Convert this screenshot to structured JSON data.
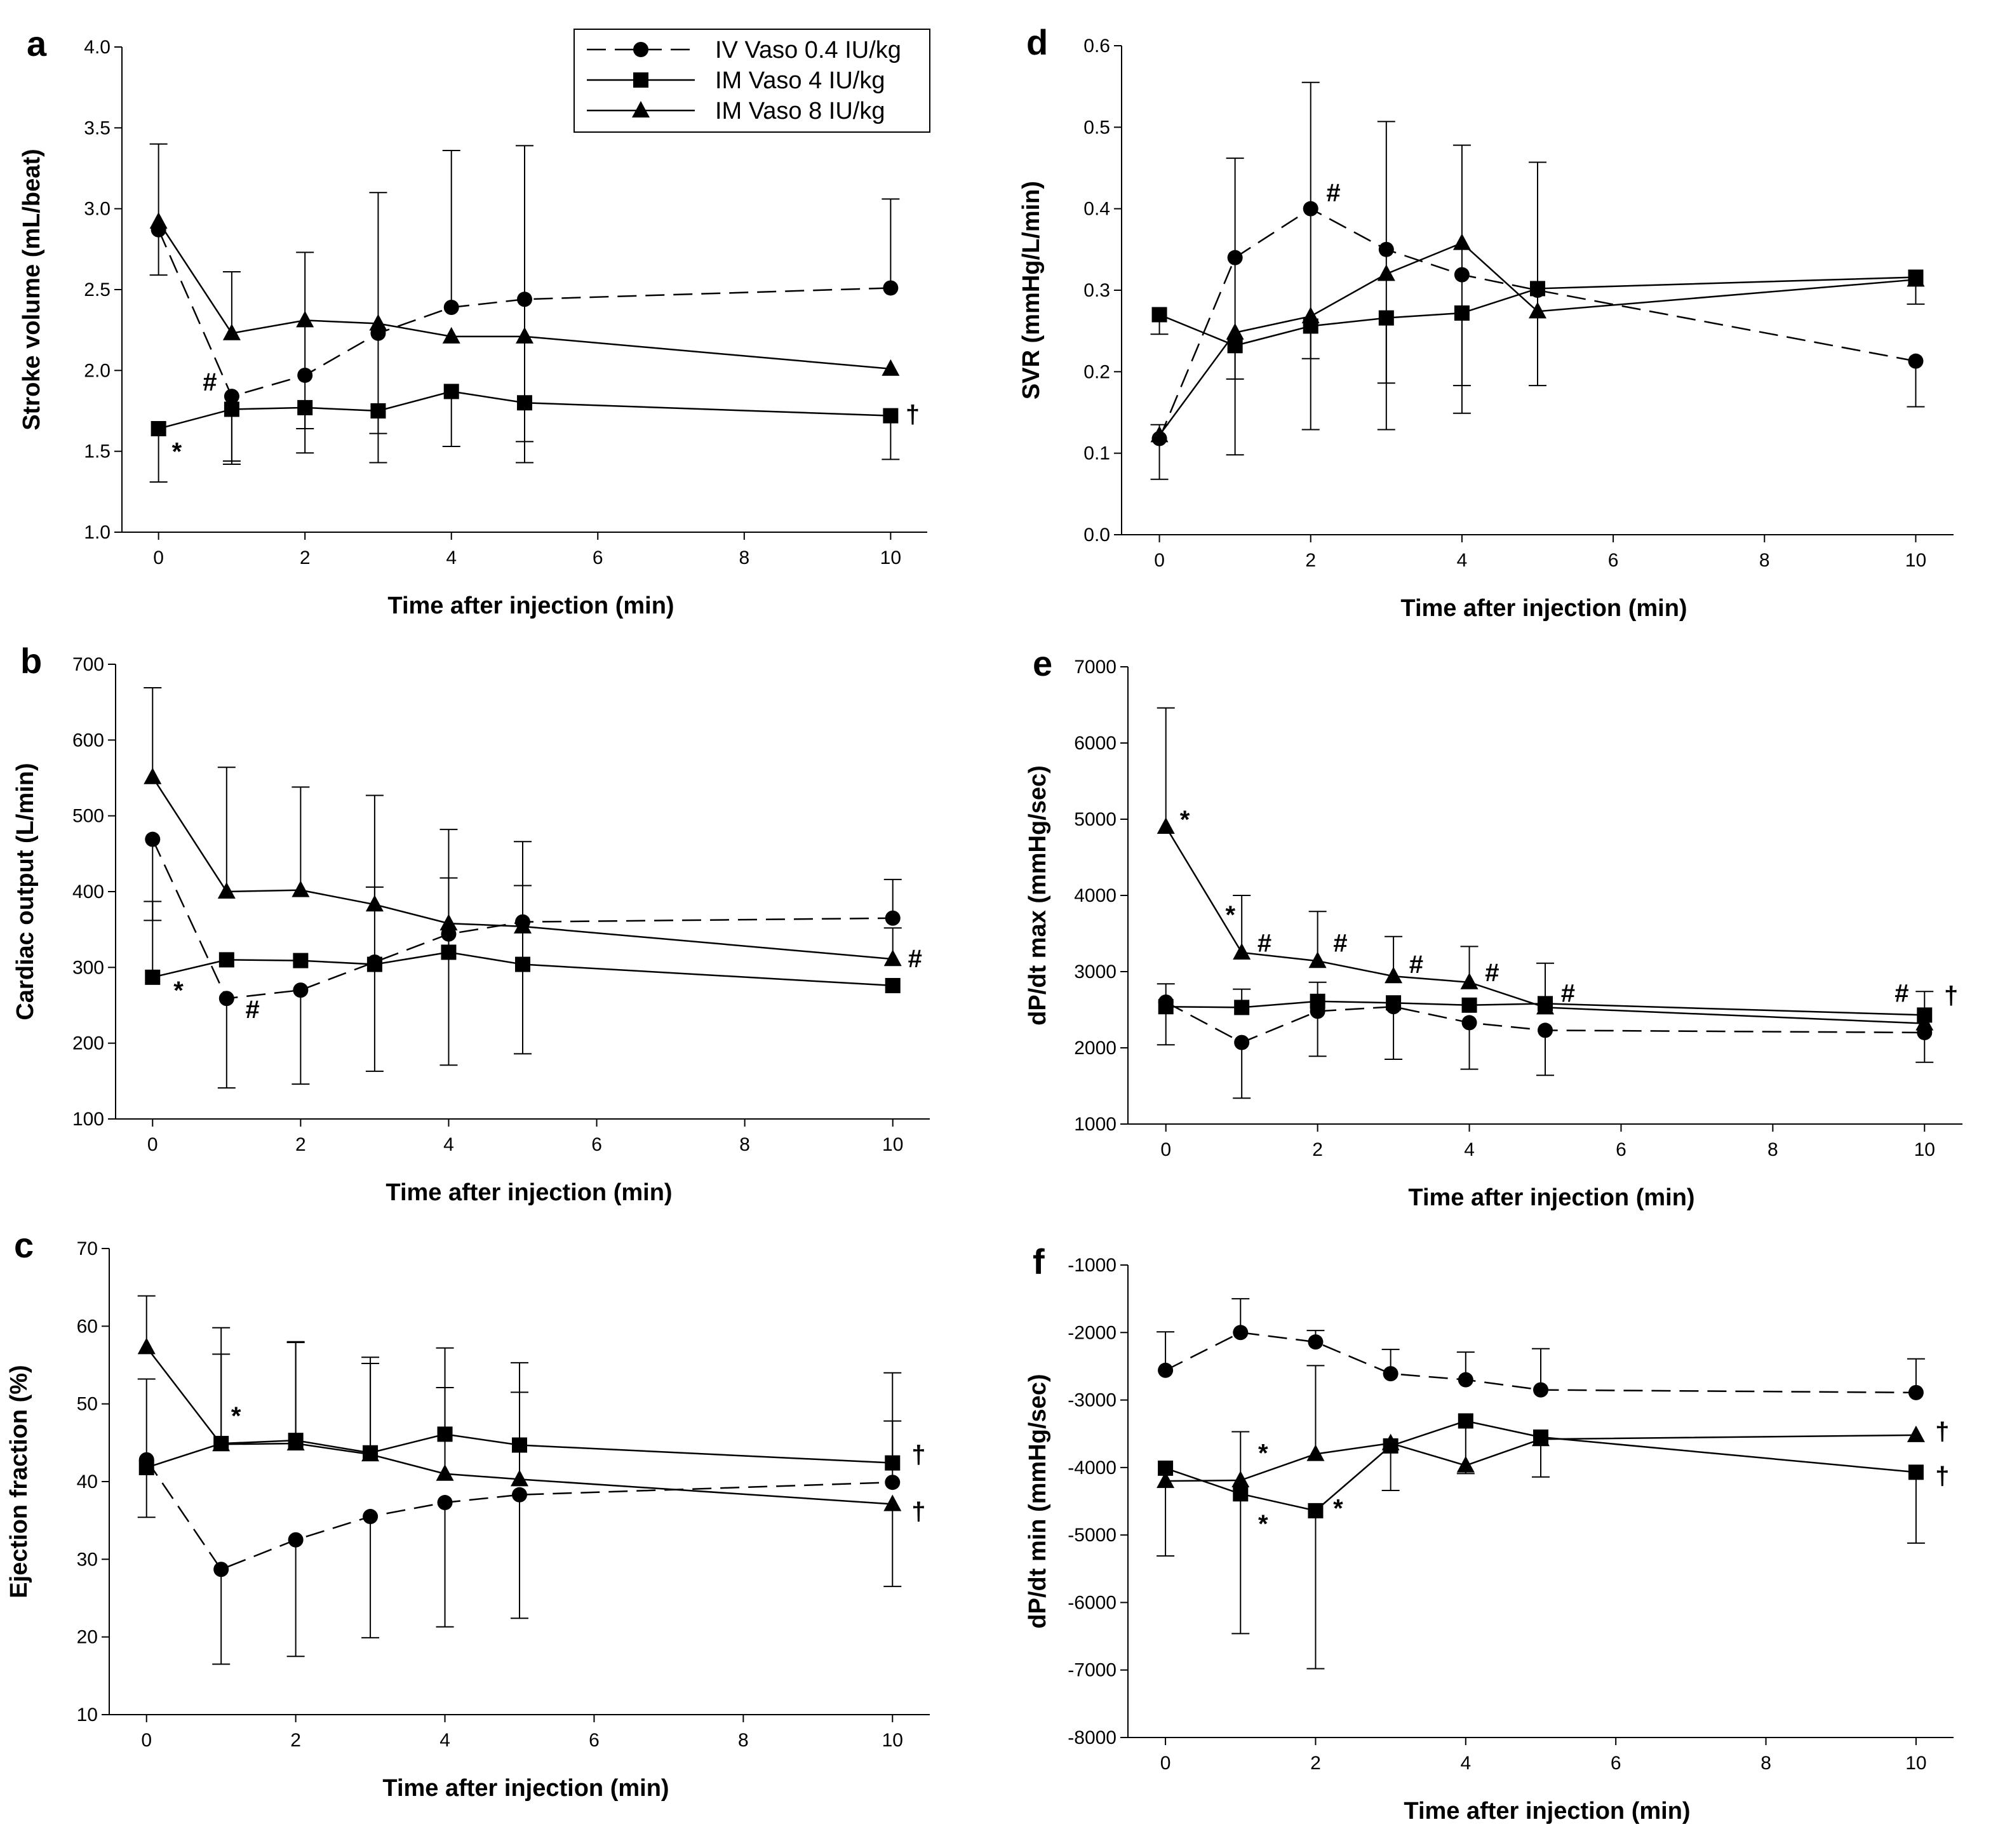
{
  "legend": {
    "entries": [
      {
        "label": "IV Vaso 0.4 IU/kg",
        "marker": "circle",
        "line": "dashed"
      },
      {
        "label": "IM Vaso 4 IU/kg",
        "marker": "square",
        "line": "solid"
      },
      {
        "label": "IM Vaso 8 IU/kg",
        "marker": "triangle",
        "line": "solid"
      }
    ]
  },
  "chart_data": [
    {
      "type": "line",
      "panel": "a",
      "xlabel": "Time after injection (min)",
      "ylabel": "Stroke volume (mL/beat)",
      "x": [
        0,
        1,
        2,
        3,
        4,
        5,
        10
      ],
      "xticks": [
        0,
        2,
        4,
        6,
        8,
        10
      ],
      "xlim": [
        -0.5,
        10.5
      ],
      "ylim": [
        1.0,
        4.0
      ],
      "yticks": [
        1.0,
        1.5,
        2.0,
        2.5,
        3.0,
        3.5,
        4.0
      ],
      "ytick_labels": [
        "1.0",
        "1.5",
        "2.0",
        "2.5",
        "3.0",
        "3.5",
        "4.0"
      ],
      "series": [
        {
          "name": "IV Vaso 0.4 IU/kg",
          "values": [
            2.87,
            1.84,
            1.97,
            2.23,
            2.39,
            2.44,
            2.51
          ],
          "err_up": [
            null,
            null,
            null,
            null,
            3.36,
            3.39,
            3.06
          ],
          "err_down": [
            2.59,
            1.44,
            null,
            null,
            null,
            1.56,
            null
          ]
        },
        {
          "name": "IM Vaso 4 IU/kg",
          "values": [
            1.64,
            1.76,
            1.77,
            1.75,
            1.87,
            1.8,
            1.72
          ],
          "err_up": [
            null,
            null,
            null,
            null,
            null,
            null,
            null
          ],
          "err_down": [
            1.31,
            1.42,
            1.49,
            1.43,
            1.53,
            1.43,
            1.45
          ]
        },
        {
          "name": "IM Vaso 8 IU/kg",
          "values": [
            2.92,
            2.23,
            2.31,
            2.29,
            2.21,
            2.21,
            2.01
          ],
          "err_up": [
            3.4,
            2.61,
            2.73,
            3.1,
            null,
            null,
            null
          ],
          "err_down": [
            null,
            null,
            1.64,
            1.61,
            null,
            null,
            null
          ]
        }
      ],
      "annotations": [
        {
          "text": "#",
          "x": 0.7,
          "y": 1.93
        },
        {
          "text": "*",
          "x": 0.25,
          "y": 1.5
        },
        {
          "text": "†",
          "x": 10.3,
          "y": 1.73
        }
      ]
    },
    {
      "type": "line",
      "panel": "b",
      "xlabel": "Time after injection (min)",
      "ylabel": "Cardiac output (L/min)",
      "x": [
        0,
        1,
        2,
        3,
        4,
        5,
        10
      ],
      "xticks": [
        0,
        2,
        4,
        6,
        8,
        10
      ],
      "xlim": [
        -0.5,
        10.5
      ],
      "ylim": [
        100,
        700
      ],
      "yticks": [
        100,
        200,
        300,
        400,
        500,
        600,
        700
      ],
      "ytick_labels": [
        "100",
        "200",
        "300",
        "400",
        "500",
        "600",
        "700"
      ],
      "series": [
        {
          "name": "IV Vaso 0.4 IU/kg",
          "values": [
            469,
            259,
            270,
            307,
            344,
            360,
            365
          ],
          "err_up": [
            null,
            null,
            null,
            null,
            482,
            466,
            416
          ],
          "err_down": [
            362,
            141,
            146,
            163,
            171,
            null,
            null
          ]
        },
        {
          "name": "IM Vaso 4 IU/kg",
          "values": [
            287,
            310,
            309,
            304,
            320,
            304,
            276
          ],
          "err_up": [
            387,
            null,
            null,
            406,
            418,
            408,
            null
          ],
          "err_down": [
            null,
            null,
            null,
            null,
            null,
            186,
            null
          ]
        },
        {
          "name": "IM Vaso 8 IU/kg",
          "values": [
            551,
            400,
            402,
            383,
            358,
            354,
            311
          ],
          "err_up": [
            669,
            564,
            538,
            527,
            null,
            null,
            352
          ],
          "err_down": [
            null,
            null,
            null,
            null,
            null,
            null,
            null
          ]
        }
      ],
      "annotations": [
        {
          "text": "*",
          "x": 0.35,
          "y": 270
        },
        {
          "text": "#",
          "x": 1.35,
          "y": 245
        },
        {
          "text": "#",
          "x": 10.3,
          "y": 312
        }
      ]
    },
    {
      "type": "line",
      "panel": "c",
      "xlabel": "Time after injection (min)",
      "ylabel": "Ejection fraction (%)",
      "x": [
        0,
        1,
        2,
        3,
        4,
        5,
        10
      ],
      "xticks": [
        0,
        2,
        4,
        6,
        8,
        10
      ],
      "xlim": [
        -0.5,
        10.5
      ],
      "ylim": [
        10,
        70
      ],
      "yticks": [
        10,
        20,
        30,
        40,
        50,
        60,
        70
      ],
      "ytick_labels": [
        "10",
        "20",
        "30",
        "40",
        "50",
        "60",
        "70"
      ],
      "series": [
        {
          "name": "IV Vaso 0.4 IU/kg",
          "values": [
            42.8,
            28.7,
            32.5,
            35.5,
            37.3,
            38.3,
            39.9
          ],
          "err_up": [
            null,
            null,
            null,
            null,
            null,
            null,
            47.8
          ],
          "err_down": [
            35.4,
            16.5,
            17.5,
            19.9,
            21.3,
            22.4,
            null
          ]
        },
        {
          "name": "IM Vaso 4 IU/kg",
          "values": [
            41.8,
            44.9,
            45.3,
            43.7,
            46.1,
            44.7,
            42.4
          ],
          "err_up": [
            53.2,
            56.4,
            58.0,
            55.2,
            57.2,
            55.3,
            54.0
          ],
          "err_down": [
            null,
            null,
            null,
            null,
            null,
            null,
            null
          ]
        },
        {
          "name": "IM Vaso 8 IU/kg",
          "values": [
            57.3,
            44.8,
            44.9,
            43.5,
            41.0,
            40.3,
            37.1
          ],
          "err_up": [
            63.9,
            59.8,
            57.9,
            56.0,
            52.1,
            51.5,
            null
          ],
          "err_down": [
            null,
            null,
            null,
            null,
            null,
            null,
            26.5
          ]
        }
      ],
      "annotations": [
        {
          "text": "*",
          "x": 1.2,
          "y": 48.5
        },
        {
          "text": "†",
          "x": 10.35,
          "y": 43.5
        },
        {
          "text": "†",
          "x": 10.35,
          "y": 36.2
        }
      ]
    },
    {
      "type": "line",
      "panel": "d",
      "xlabel": "Time after injection (min)",
      "ylabel": "SVR (mmHg/L/min)",
      "x": [
        0,
        1,
        2,
        3,
        4,
        5,
        10
      ],
      "xticks": [
        0,
        2,
        4,
        6,
        8,
        10
      ],
      "xlim": [
        -0.5,
        10.5
      ],
      "ylim": [
        0.0,
        0.6
      ],
      "yticks": [
        0.0,
        0.1,
        0.2,
        0.3,
        0.4,
        0.5,
        0.6
      ],
      "ytick_labels": [
        "0.0",
        "0.1",
        "0.2",
        "0.3",
        "0.4",
        "0.5",
        "0.6"
      ],
      "series": [
        {
          "name": "IV Vaso 0.4 IU/kg",
          "values": [
            0.118,
            0.34,
            0.4,
            0.35,
            0.319,
            0.3,
            0.213
          ],
          "err_up": [
            null,
            0.462,
            0.555,
            0.507,
            0.478,
            null,
            null
          ],
          "err_down": [
            0.068,
            0.098,
            0.129,
            0.129,
            0.149,
            null,
            0.157
          ]
        },
        {
          "name": "IM Vaso 4 IU/kg",
          "values": [
            0.27,
            0.232,
            0.256,
            0.266,
            0.272,
            0.302,
            0.316
          ],
          "err_up": [
            null,
            null,
            null,
            null,
            null,
            0.457,
            null
          ],
          "err_down": [
            0.246,
            0.191,
            0.216,
            0.186,
            0.183,
            0.183,
            0.283
          ]
        },
        {
          "name": "IM Vaso 8 IU/kg",
          "values": [
            0.122,
            0.248,
            0.268,
            0.32,
            0.358,
            0.274,
            0.313
          ],
          "err_up": [
            0.135,
            null,
            null,
            null,
            null,
            null,
            null
          ],
          "err_down": [
            null,
            null,
            null,
            null,
            null,
            null,
            null
          ]
        }
      ],
      "annotations": [
        {
          "text": "#",
          "x": 2.3,
          "y": 0.42
        }
      ]
    },
    {
      "type": "line",
      "panel": "e",
      "xlabel": "Time after injection (min)",
      "ylabel": "dP/dt max (mmHg/sec)",
      "x": [
        0,
        1,
        2,
        3,
        4,
        5,
        10
      ],
      "xticks": [
        0,
        2,
        4,
        6,
        8,
        10
      ],
      "xlim": [
        -0.5,
        10.5
      ],
      "ylim": [
        1000,
        7000
      ],
      "yticks": [
        1000,
        2000,
        3000,
        4000,
        5000,
        6000,
        7000
      ],
      "ytick_labels": [
        "1000",
        "2000",
        "3000",
        "4000",
        "5000",
        "6000",
        "7000"
      ],
      "series": [
        {
          "name": "IV Vaso 0.4 IU/kg",
          "values": [
            2600,
            2070,
            2480,
            2540,
            2330,
            2230,
            2200
          ],
          "err_up": [
            null,
            null,
            null,
            null,
            null,
            null,
            null
          ],
          "err_down": [
            2040,
            1340,
            1890,
            1850,
            1720,
            1640,
            1810
          ]
        },
        {
          "name": "IM Vaso 4 IU/kg",
          "values": [
            2540,
            2530,
            2610,
            2590,
            2560,
            2580,
            2430
          ],
          "err_up": [
            2840,
            2770,
            2860,
            null,
            null,
            3110,
            2740
          ],
          "err_down": [
            null,
            null,
            null,
            null,
            null,
            null,
            null
          ]
        },
        {
          "name": "IM Vaso 8 IU/kg",
          "values": [
            4900,
            3250,
            3140,
            2940,
            2860,
            2530,
            2320
          ],
          "err_up": [
            6460,
            4000,
            3790,
            3460,
            3330,
            null,
            null
          ],
          "err_down": [
            null,
            null,
            null,
            null,
            null,
            null,
            null
          ]
        }
      ],
      "annotations": [
        {
          "text": "*",
          "x": 0.25,
          "y": 5000
        },
        {
          "text": "*",
          "x": 0.85,
          "y": 3750
        },
        {
          "text": "#",
          "x": 1.3,
          "y": 3380
        },
        {
          "text": "#",
          "x": 2.3,
          "y": 3380
        },
        {
          "text": "#",
          "x": 3.3,
          "y": 3100
        },
        {
          "text": "#",
          "x": 4.3,
          "y": 2990
        },
        {
          "text": "#",
          "x": 5.3,
          "y": 2720
        },
        {
          "text": "#",
          "x": 9.7,
          "y": 2720
        },
        {
          "text": "†",
          "x": 10.35,
          "y": 2690
        }
      ]
    },
    {
      "type": "line",
      "panel": "f",
      "xlabel": "Time after injection (min)",
      "ylabel": "dP/dt min (mmHg/sec)",
      "x": [
        0,
        1,
        2,
        3,
        4,
        5,
        10
      ],
      "xticks": [
        0,
        2,
        4,
        6,
        8,
        10
      ],
      "xlim": [
        -0.5,
        10.5
      ],
      "ylim": [
        -8000,
        -1000
      ],
      "yticks": [
        -8000,
        -7000,
        -6000,
        -5000,
        -4000,
        -3000,
        -2000,
        -1000
      ],
      "ytick_labels": [
        "-8000",
        "-7000",
        "-6000",
        "-5000",
        "-4000",
        "-3000",
        "-2000",
        "-1000"
      ],
      "series": [
        {
          "name": "IV Vaso 0.4 IU/kg",
          "values": [
            -2560,
            -2000,
            -2140,
            -2610,
            -2700,
            -2850,
            -2890
          ],
          "err_up": [
            -1990,
            -1500,
            -1970,
            -2250,
            -2290,
            -2240,
            -2390
          ],
          "err_down": [
            null,
            null,
            null,
            null,
            null,
            null,
            null
          ]
        },
        {
          "name": "IM Vaso 4 IU/kg",
          "values": [
            -4010,
            -4390,
            -4640,
            -3680,
            -3310,
            -3550,
            -4070
          ],
          "err_up": [
            null,
            null,
            null,
            null,
            null,
            null,
            null
          ],
          "err_down": [
            -5310,
            -6460,
            -6980,
            -4340,
            -4090,
            -4140,
            -5120
          ]
        },
        {
          "name": "IM Vaso 8 IU/kg",
          "values": [
            -4200,
            -4190,
            -3800,
            -3640,
            -3970,
            -3580,
            -3520
          ],
          "err_up": [
            null,
            -3470,
            -2490,
            null,
            null,
            null,
            null
          ],
          "err_down": [
            null,
            null,
            null,
            null,
            null,
            null,
            null
          ]
        }
      ],
      "annotations": [
        {
          "text": "*",
          "x": 1.3,
          "y": -3780
        },
        {
          "text": "*",
          "x": 1.3,
          "y": -4830
        },
        {
          "text": "*",
          "x": 2.3,
          "y": -4600
        },
        {
          "text": "†",
          "x": 10.35,
          "y": -3460
        },
        {
          "text": "†",
          "x": 10.35,
          "y": -4120
        }
      ]
    }
  ]
}
